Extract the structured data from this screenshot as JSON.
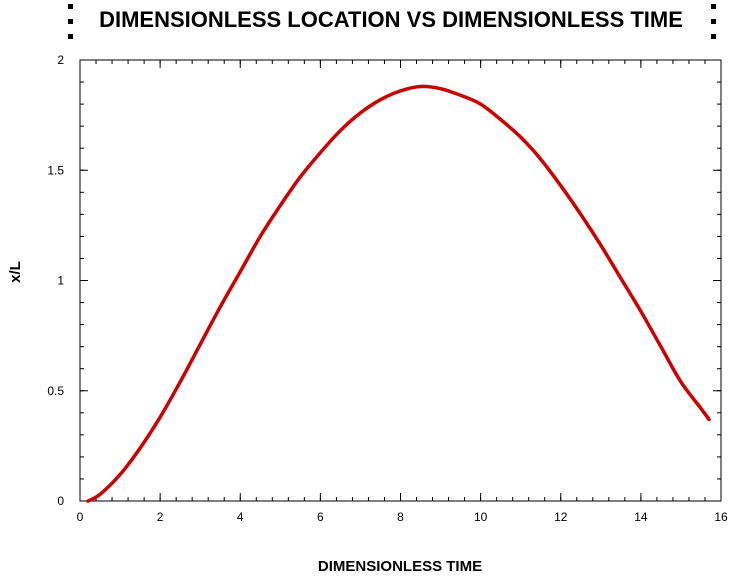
{
  "chart_data": {
    "type": "line",
    "title": "DIMENSIONLESS LOCATION VS DIMENSIONLESS TIME",
    "xlabel": "DIMENSIONLESS TIME",
    "ylabel": "x/L",
    "xlim": [
      0,
      16
    ],
    "ylim": [
      0,
      2
    ],
    "x_ticks": [
      "0",
      "2",
      "4",
      "6",
      "8",
      "10",
      "12",
      "14",
      "16"
    ],
    "y_ticks": [
      "0",
      "0.5",
      "1",
      "1.5",
      "2"
    ],
    "grid": false,
    "series": [
      {
        "color": "#cc0000",
        "x": [
          0.2,
          0.5,
          1.0,
          1.5,
          2.0,
          2.5,
          3.0,
          3.5,
          4.0,
          4.5,
          5.0,
          5.5,
          6.0,
          6.5,
          7.0,
          7.5,
          8.0,
          8.5,
          9.0,
          9.5,
          10.0,
          10.5,
          11.0,
          11.5,
          12.0,
          12.5,
          13.0,
          13.5,
          14.0,
          14.5,
          15.0,
          15.5,
          15.7
        ],
        "y": [
          0.0,
          0.03,
          0.12,
          0.24,
          0.38,
          0.54,
          0.71,
          0.88,
          1.04,
          1.2,
          1.34,
          1.47,
          1.58,
          1.68,
          1.76,
          1.82,
          1.86,
          1.88,
          1.87,
          1.84,
          1.8,
          1.73,
          1.65,
          1.55,
          1.43,
          1.3,
          1.16,
          1.01,
          0.86,
          0.7,
          0.54,
          0.42,
          0.37
        ]
      }
    ]
  }
}
